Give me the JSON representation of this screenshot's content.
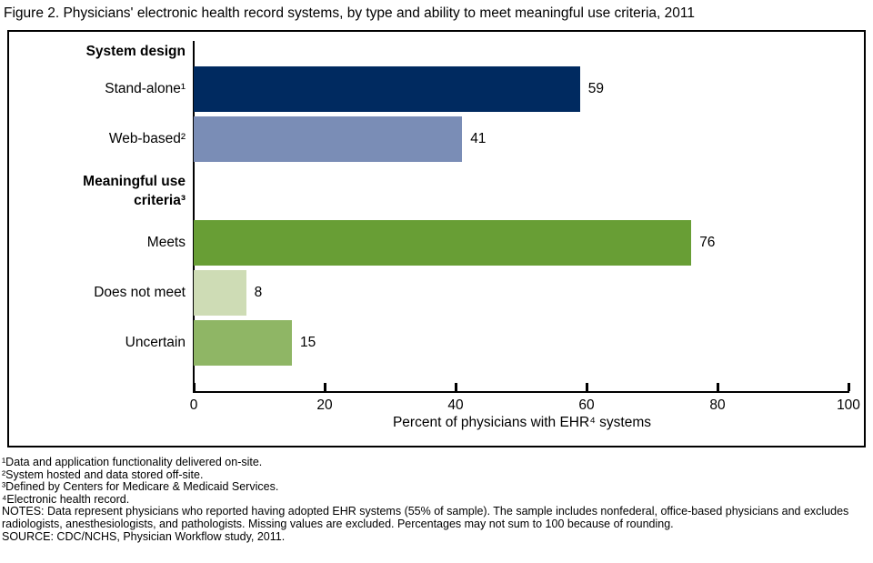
{
  "title": "Figure 2. Physicians' electronic health record systems, by type and ability to meet meaningful use criteria, 2011",
  "chart_data": {
    "type": "bar",
    "orientation": "horizontal",
    "title": "Figure 2. Physicians' electronic health record systems, by type and ability to meet meaningful use criteria, 2011",
    "xlabel": "Percent of physicians with EHR⁴ systems",
    "ylabel": "",
    "xlim": [
      0,
      100
    ],
    "xticks": [
      0,
      20,
      40,
      60,
      80,
      100
    ],
    "grid": false,
    "legend": "none",
    "groups": [
      {
        "header": "System design",
        "items": [
          {
            "label": "Stand-alone¹",
            "value": 59,
            "color": "#002a60"
          },
          {
            "label": "Web-based²",
            "value": 41,
            "color": "#7a8db6"
          }
        ]
      },
      {
        "header": "Meaningful use criteria³",
        "items": [
          {
            "label": "Meets",
            "value": 76,
            "color": "#689e35"
          },
          {
            "label": "Does not meet",
            "value": 8,
            "color": "#cedcb5"
          },
          {
            "label": "Uncertain",
            "value": 15,
            "color": "#8fb665"
          }
        ]
      }
    ]
  },
  "axis": {
    "x_title": "Percent of physicians with EHR⁴ systems"
  },
  "footnotes": [
    "¹Data and application functionality delivered on-site.",
    "²System hosted and data stored off-site.",
    "³Defined by Centers for Medicare & Medicaid Services.",
    "⁴Electronic health record.",
    "NOTES: Data represent physicians who reported having adopted EHR systems (55% of sample). The sample includes nonfederal, office-based physicians and excludes radiologists, anesthesiologists, and pathologists. Missing values are excluded. Percentages may not sum to 100 because of rounding.",
    "SOURCE: CDC/NCHS, Physician Workflow study, 2011."
  ]
}
